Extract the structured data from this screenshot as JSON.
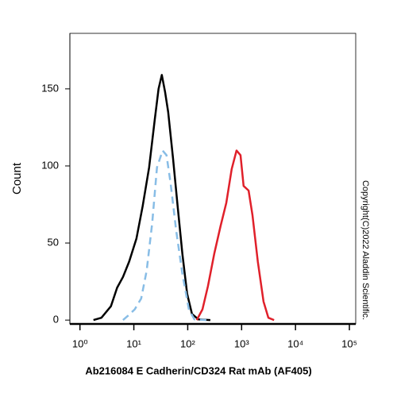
{
  "chart_data": {
    "type": "line",
    "x_label": "Ab216084 E Cadherin/CD324 Rat mAb (AF405)",
    "y_label": "Count",
    "annotation": "Copyright(C)2022 Aladdin Scientific.",
    "xscale": "log",
    "xlim": [
      0.65,
      131000
    ],
    "ylim": [
      -2.5,
      186
    ],
    "xticks": [
      {
        "value": 1,
        "label": "10⁰"
      },
      {
        "value": 10,
        "label": "10¹"
      },
      {
        "value": 100,
        "label": "10²"
      },
      {
        "value": 1000,
        "label": "10³"
      },
      {
        "value": 10000,
        "label": "10⁴"
      },
      {
        "value": 100000,
        "label": "10⁵"
      }
    ],
    "yticks": [
      0,
      50,
      100,
      150
    ],
    "series": [
      {
        "color": "#000000",
        "dash": false,
        "x": [
          1.78,
          2.5,
          3.76,
          4.9,
          6.3,
          8.2,
          11.2,
          14.6,
          19.2,
          24.4,
          28.8,
          33,
          38,
          43.3,
          53.4,
          65,
          79.5,
          97.7,
          120,
          158,
          263
        ],
        "values": [
          0,
          1.5,
          9,
          21,
          28,
          38,
          53,
          74,
          99,
          130,
          150,
          159,
          148,
          135,
          105,
          74,
          43,
          17,
          4,
          0.5,
          0
        ]
      },
      {
        "color": "#88bde6",
        "dash": true,
        "x": [
          6.3,
          7.9,
          10.4,
          13.7,
          17.3,
          21.9,
          26.9,
          34.2,
          40.4,
          48,
          61,
          79.5,
          105,
          133,
          222
        ],
        "values": [
          0,
          3,
          7,
          14,
          32,
          63,
          99,
          110,
          107,
          89,
          58,
          30,
          7,
          0.5,
          0
        ]
      },
      {
        "color": "#e0202a",
        "dash": false,
        "x": [
          147,
          188,
          237,
          310,
          407,
          520,
          655,
          805,
          955,
          1090,
          1350,
          1590,
          2000,
          2550,
          3140,
          4000
        ],
        "values": [
          0,
          7,
          22,
          43,
          61,
          76,
          98,
          110,
          107,
          87,
          84,
          68,
          38,
          12,
          1.5,
          0
        ]
      }
    ]
  }
}
